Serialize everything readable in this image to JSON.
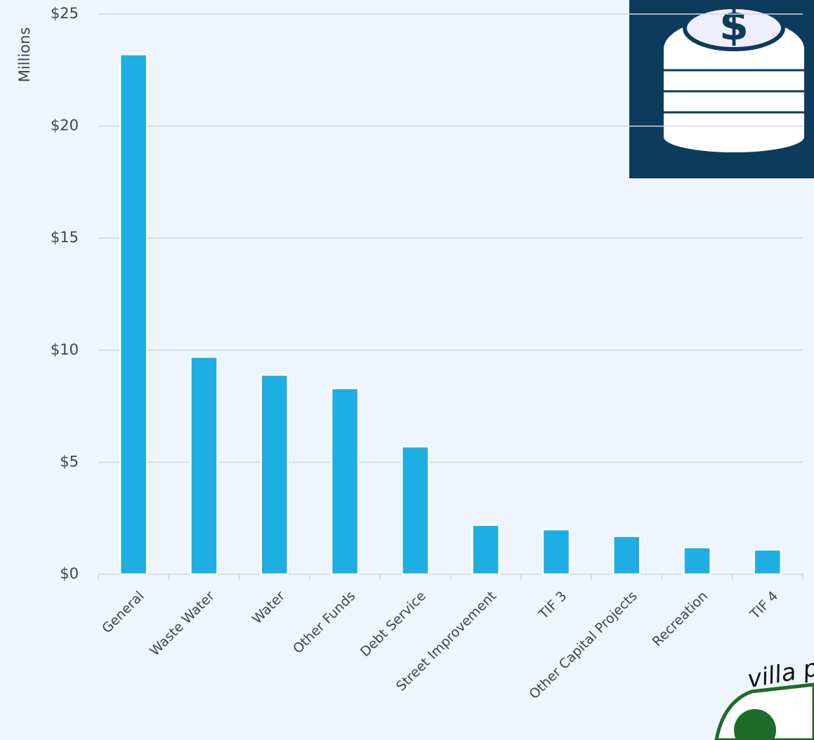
{
  "chart_data": {
    "type": "bar",
    "y_axis_label": "Millions",
    "categories": [
      "General",
      "Waste Water",
      "Water",
      "Other Funds",
      "Debt Service",
      "Street Improvement",
      "TIF 3",
      "Other Capital Projects",
      "Recreation",
      "TIF 4"
    ],
    "values": [
      23.2,
      9.7,
      8.9,
      8.3,
      5.7,
      2.2,
      2.0,
      1.7,
      1.2,
      1.1
    ],
    "color": "#1eaee4",
    "ylim": [
      0,
      25
    ],
    "yticks": [
      {
        "value": 0,
        "label": "$0"
      },
      {
        "value": 5,
        "label": "$5"
      },
      {
        "value": 10,
        "label": "$10"
      },
      {
        "value": 15,
        "label": "$15"
      },
      {
        "value": 20,
        "label": "$20"
      },
      {
        "value": 25,
        "label": "$25"
      }
    ],
    "grid": true
  },
  "logo_text": "villa p"
}
